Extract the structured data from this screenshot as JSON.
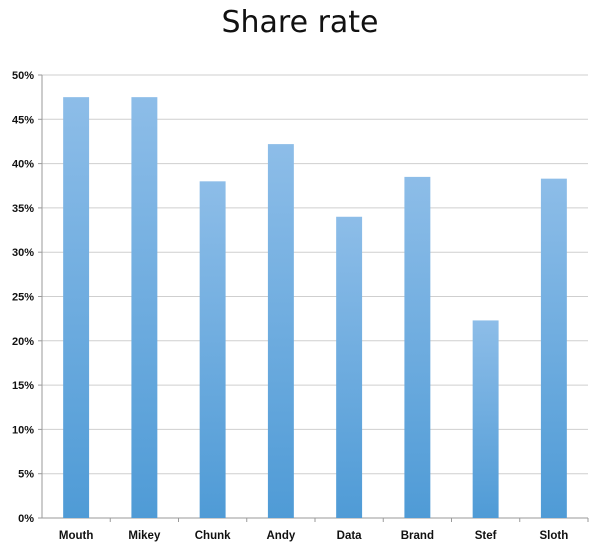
{
  "chart_data": {
    "type": "bar",
    "title": "Share rate",
    "xlabel": "",
    "ylabel": "",
    "categories": [
      "Mouth",
      "Mikey",
      "Chunk",
      "Andy",
      "Data",
      "Brand",
      "Stef",
      "Sloth"
    ],
    "values": [
      47.5,
      47.5,
      38.0,
      42.2,
      34.0,
      38.5,
      22.3,
      38.3
    ],
    "value_unit": "%",
    "ylim": [
      0,
      50
    ],
    "yticks": [
      "0%",
      "5%",
      "10%",
      "15%",
      "20%",
      "25%",
      "30%",
      "35%",
      "40%",
      "45%",
      "50%"
    ],
    "grid": true,
    "legend": "none",
    "colors": {
      "bar_top": "#8DBDE8",
      "bar_bottom": "#4F9BD6",
      "grid": "#CFCFCF",
      "axis": "#9A9A9A"
    }
  }
}
